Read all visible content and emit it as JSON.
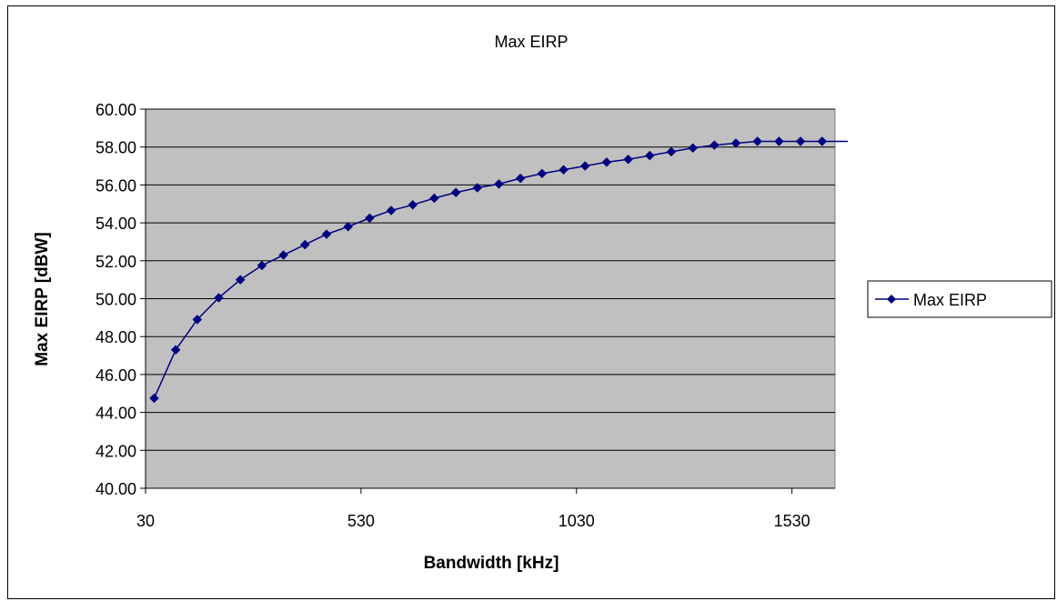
{
  "chart_data": {
    "type": "line",
    "title": "Max EIRP",
    "xlabel": "Bandwidth [kHz]",
    "ylabel": "Max EIRP [dBW]",
    "xlim": [
      30,
      1630
    ],
    "ylim": [
      40,
      60
    ],
    "x_ticks": [
      30,
      530,
      1030,
      1530
    ],
    "x_tick_labels": [
      "30",
      "530",
      "1030",
      "1530"
    ],
    "y_ticks": [
      40,
      42,
      44,
      46,
      48,
      50,
      52,
      54,
      56,
      58,
      60
    ],
    "y_tick_labels": [
      "40.00",
      "42.00",
      "44.00",
      "46.00",
      "48.00",
      "50.00",
      "52.00",
      "54.00",
      "56.00",
      "58.00",
      "60.00"
    ],
    "grid": "horizontal",
    "plot_background": "#c0c0c0",
    "series_color": "#000080",
    "legend_position": "right",
    "series": [
      {
        "name": "Max EIRP",
        "x": [
          50,
          100,
          150,
          200,
          250,
          300,
          350,
          400,
          450,
          500,
          550,
          600,
          650,
          700,
          750,
          800,
          850,
          900,
          950,
          1000,
          1050,
          1100,
          1150,
          1200,
          1250,
          1300,
          1350,
          1400,
          1450,
          1500,
          1550,
          1600
        ],
        "y": [
          44.75,
          47.3,
          48.9,
          50.05,
          51.0,
          51.75,
          52.3,
          52.85,
          53.4,
          53.8,
          54.25,
          54.65,
          54.95,
          55.3,
          55.6,
          55.85,
          56.05,
          56.35,
          56.6,
          56.8,
          57.0,
          57.2,
          57.35,
          57.55,
          57.75,
          57.95,
          58.1,
          58.2,
          58.3,
          58.3,
          58.3,
          58.3
        ]
      }
    ]
  }
}
